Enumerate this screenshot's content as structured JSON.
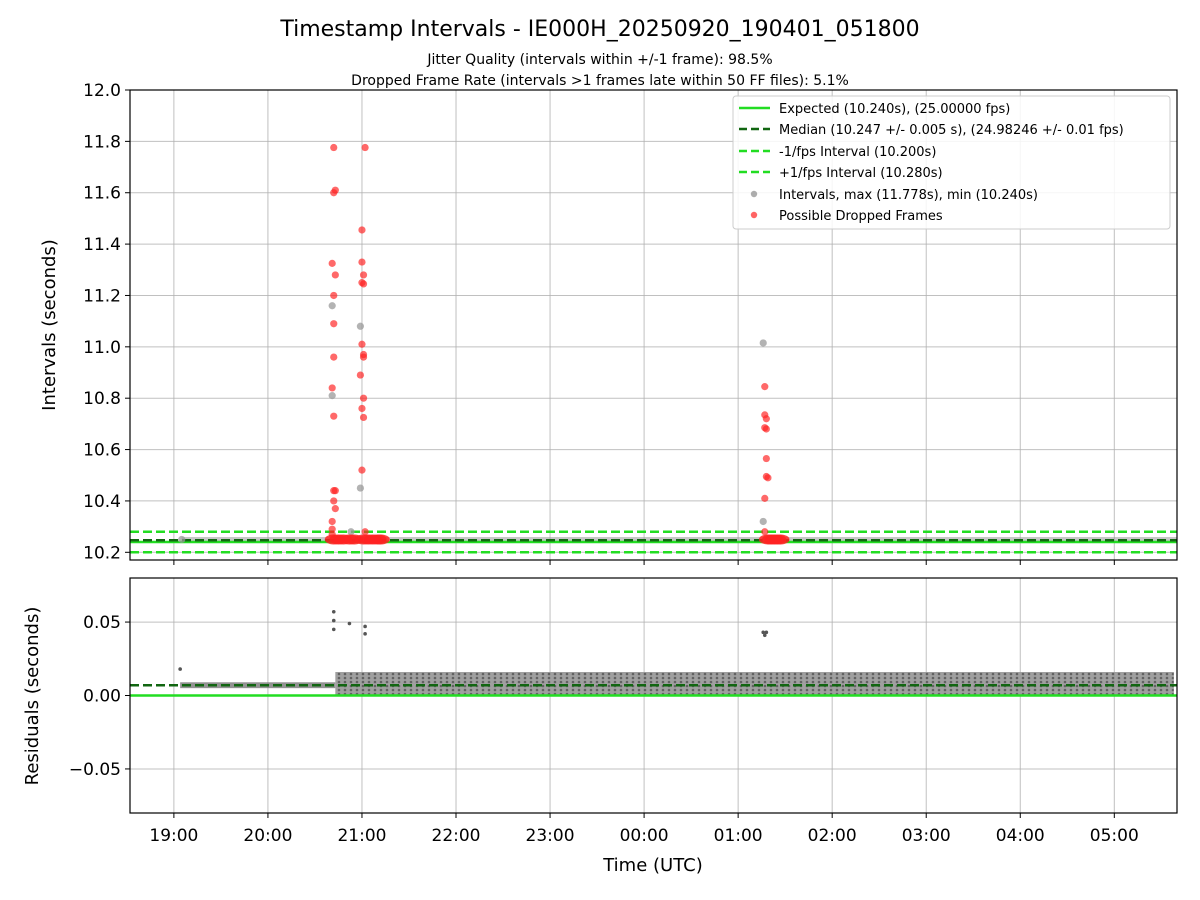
{
  "chart_data": [
    {
      "type": "scatter",
      "title": "Timestamp Intervals - IE000H_20250920_190401_051800",
      "subtitle_lines": [
        "Jitter Quality (intervals within +/-1 frame): 98.5%",
        "Dropped Frame Rate (intervals >1 frames late within 50 FF files): 5.1%"
      ],
      "xlabel": "",
      "ylabel": "Intervals (seconds)",
      "ylim": [
        10.17,
        12.0
      ],
      "yticks": [
        "10.2",
        "10.4",
        "10.6",
        "10.8",
        "11.0",
        "11.2",
        "11.4",
        "11.6",
        "11.8",
        "12.0"
      ],
      "grid": true,
      "legend_position": "top-right",
      "reference_lines": [
        {
          "label": "Expected (10.240s), (25.00000 fps)",
          "y": 10.24,
          "style": "solid",
          "color": "#22dd22"
        },
        {
          "label": "Median (10.247 +/- 0.005 s), (24.98246 +/- 0.01 fps)",
          "y": 10.247,
          "style": "dashed",
          "color": "#116611"
        },
        {
          "label": "-1/fps Interval (10.200s)",
          "y": 10.2,
          "style": "dashed",
          "color": "#22dd22"
        },
        {
          "label": "+1/fps Interval (10.280s)",
          "y": 10.28,
          "style": "dashed",
          "color": "#22dd22"
        }
      ],
      "series": [
        {
          "name": "Intervals, max (11.778s), min (10.240s)",
          "color": "#999999",
          "points": [
            {
              "x": "19:05",
              "y": 10.25
            },
            {
              "x": "20:41",
              "y": 11.16
            },
            {
              "x": "20:41",
              "y": 10.81
            },
            {
              "x": "20:59",
              "y": 11.08
            },
            {
              "x": "20:59",
              "y": 10.45
            },
            {
              "x": "20:53",
              "y": 10.28
            },
            {
              "x": "01:16",
              "y": 11.015
            },
            {
              "x": "01:16",
              "y": 10.32
            }
          ]
        },
        {
          "name": "Possible Dropped Frames",
          "color": "#ff2222",
          "points": [
            {
              "x": "20:42",
              "y": 11.776
            },
            {
              "x": "20:42",
              "y": 11.6
            },
            {
              "x": "20:43",
              "y": 11.61
            },
            {
              "x": "20:41",
              "y": 11.325
            },
            {
              "x": "20:43",
              "y": 11.28
            },
            {
              "x": "20:42",
              "y": 11.2
            },
            {
              "x": "20:42",
              "y": 11.09
            },
            {
              "x": "20:42",
              "y": 10.96
            },
            {
              "x": "20:41",
              "y": 10.84
            },
            {
              "x": "20:42",
              "y": 10.73
            },
            {
              "x": "20:43",
              "y": 10.44
            },
            {
              "x": "20:42",
              "y": 10.44
            },
            {
              "x": "20:42",
              "y": 10.4
            },
            {
              "x": "20:43",
              "y": 10.37
            },
            {
              "x": "20:41",
              "y": 10.32
            },
            {
              "x": "20:41",
              "y": 10.29
            },
            {
              "x": "20:41",
              "y": 10.27
            },
            {
              "x": "20:42",
              "y": 10.25
            },
            {
              "x": "20:45",
              "y": 10.25
            },
            {
              "x": "20:48",
              "y": 10.25
            },
            {
              "x": "20:52",
              "y": 10.25
            },
            {
              "x": "20:55",
              "y": 10.25
            },
            {
              "x": "21:02",
              "y": 11.776
            },
            {
              "x": "21:00",
              "y": 11.455
            },
            {
              "x": "21:00",
              "y": 11.33
            },
            {
              "x": "21:01",
              "y": 11.28
            },
            {
              "x": "21:00",
              "y": 11.25
            },
            {
              "x": "21:01",
              "y": 11.245
            },
            {
              "x": "21:00",
              "y": 11.01
            },
            {
              "x": "21:01",
              "y": 10.97
            },
            {
              "x": "21:01",
              "y": 10.96
            },
            {
              "x": "20:59",
              "y": 10.89
            },
            {
              "x": "21:01",
              "y": 10.8
            },
            {
              "x": "21:00",
              "y": 10.76
            },
            {
              "x": "21:01",
              "y": 10.725
            },
            {
              "x": "21:00",
              "y": 10.52
            },
            {
              "x": "21:02",
              "y": 10.28
            },
            {
              "x": "21:01",
              "y": 10.25
            },
            {
              "x": "21:04",
              "y": 10.25
            },
            {
              "x": "21:07",
              "y": 10.25
            },
            {
              "x": "21:10",
              "y": 10.25
            },
            {
              "x": "21:12",
              "y": 10.25
            },
            {
              "x": "01:17",
              "y": 10.845
            },
            {
              "x": "01:17",
              "y": 10.735
            },
            {
              "x": "01:18",
              "y": 10.72
            },
            {
              "x": "01:17",
              "y": 10.685
            },
            {
              "x": "01:18",
              "y": 10.68
            },
            {
              "x": "01:18",
              "y": 10.565
            },
            {
              "x": "01:18",
              "y": 10.495
            },
            {
              "x": "01:19",
              "y": 10.49
            },
            {
              "x": "01:17",
              "y": 10.41
            },
            {
              "x": "01:17",
              "y": 10.28
            },
            {
              "x": "01:19",
              "y": 10.25
            },
            {
              "x": "01:21",
              "y": 10.25
            },
            {
              "x": "01:23",
              "y": 10.25
            },
            {
              "x": "01:25",
              "y": 10.25
            },
            {
              "x": "01:27",
              "y": 10.25
            }
          ]
        }
      ]
    },
    {
      "type": "scatter",
      "title": "",
      "xlabel": "Time (UTC)",
      "ylabel": "Residuals (seconds)",
      "ylim": [
        -0.08,
        0.08
      ],
      "yticks": [
        "−0.05",
        "0.00",
        "0.05"
      ],
      "xticks": [
        "19:00",
        "20:00",
        "21:00",
        "22:00",
        "23:00",
        "00:00",
        "01:00",
        "02:00",
        "03:00",
        "04:00",
        "05:00"
      ],
      "grid": true,
      "reference_lines": [
        {
          "y": 0.0,
          "style": "solid",
          "color": "#22dd22"
        },
        {
          "y": 0.007,
          "style": "dashed",
          "color": "#116611"
        }
      ],
      "series": [
        {
          "color": "#555555",
          "band": {
            "y_min": 0.0,
            "y_max": 0.016,
            "x_start": "20:43",
            "x_end": "05:38",
            "pre_band_y": 0.007,
            "pre_band_x_start": "19:04"
          },
          "points": [
            {
              "x": "19:04",
              "y": 0.018
            },
            {
              "x": "20:42",
              "y": 0.057
            },
            {
              "x": "20:42",
              "y": 0.051
            },
            {
              "x": "20:42",
              "y": 0.045
            },
            {
              "x": "20:52",
              "y": 0.049
            },
            {
              "x": "21:02",
              "y": 0.047
            },
            {
              "x": "21:02",
              "y": 0.042
            },
            {
              "x": "01:16",
              "y": 0.043
            },
            {
              "x": "01:17",
              "y": 0.041
            },
            {
              "x": "01:18",
              "y": 0.043
            }
          ]
        }
      ]
    }
  ]
}
